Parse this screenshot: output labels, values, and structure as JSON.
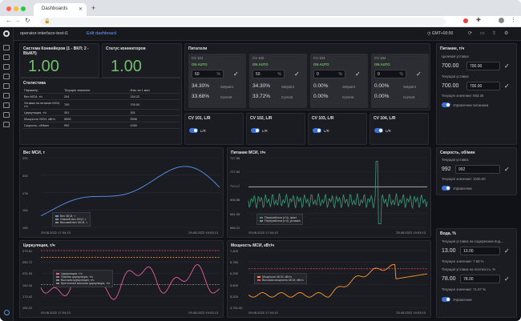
{
  "browser": {
    "tab_title": "Dashboards",
    "url": ""
  },
  "header": {
    "title": "operator-interface-test-i1",
    "edit_link": "Edit dashboard",
    "timezone": "GMT+00:00"
  },
  "system_panel": {
    "title": "Система Конвейеров (1 - ВКЛ; 2 - ВЫКЛ)",
    "value": "1.00"
  },
  "connectors_panel": {
    "title": "Статус коннекторов",
    "value": "1.00"
  },
  "stats_panel": {
    "title": "Статистика",
    "columns": [
      "Параметр",
      "Текущее значение",
      "Изм. за 1 мин"
    ],
    "rows": [
      [
        "Вес МСИ, т/ч",
        "204",
        "204.22"
      ],
      [
        "Уставка на питание МСИ, т/ч",
        "700",
        "700.00"
      ],
      [
        "Циркуляция, т/ч",
        "301",
        "301"
      ],
      [
        "Мощность МСИ, кВт/ч",
        "5506",
        "5506"
      ],
      [
        "Скорость, об/мин",
        "992",
        "1000"
      ]
    ]
  },
  "feeders_panel": {
    "title": "Питатели",
    "items": [
      {
        "name": "CV 101",
        "mode": "ON AUTO",
        "input": "50",
        "unit": "%",
        "setpoint": "34.30%",
        "setpoint_label": "Setpoint",
        "current": "33.68%",
        "current_label": "Current"
      },
      {
        "name": "CV 102",
        "mode": "ON AUTO",
        "input": "50",
        "unit": "%",
        "setpoint": "34.30%",
        "setpoint_label": "Setpoint",
        "current": "33.72%",
        "current_label": "Current"
      },
      {
        "name": "CV 103",
        "mode": "ON AUTO",
        "input": "0",
        "unit": "%",
        "setpoint": "0.00%",
        "setpoint_label": "Setpoint",
        "current": "0.00%",
        "current_label": "Current"
      },
      {
        "name": "CV 104",
        "mode": "ON AUTO",
        "input": "0",
        "unit": "%",
        "setpoint": "0.00%",
        "setpoint_label": "Setpoint",
        "current": "0.00%",
        "current_label": "Current"
      }
    ]
  },
  "cv_toggles": [
    {
      "title": "CV 101, L/R",
      "label": "L/R"
    },
    {
      "title": "CV 102, L/R",
      "label": "L/R"
    },
    {
      "title": "CV 103, L/R",
      "label": "L/R"
    },
    {
      "title": "CV 104, L/R",
      "label": "L/R"
    }
  ],
  "feed_control": {
    "title": "Питание, т/ч",
    "target_label": "Целевая уставка",
    "target_value": "700.00",
    "target_input": "700.00",
    "current_label": "Текущая уставка",
    "current_value": "700.00",
    "current_input": "700.00",
    "now_text": "Текущее значение: 693.26",
    "toggle_label": "Управление питанием"
  },
  "speed_control": {
    "title": "Скорость, об/мин",
    "current_label": "Текущая уставка",
    "current_value": "992",
    "current_input": "992",
    "now_text": "Текущее значение: 1036.00",
    "toggle_label": "Управление"
  },
  "water_control": {
    "title": "Вода, %",
    "content_label": "Текущая уставка на содержание вод...",
    "content_value": "13.00",
    "content_input": "13.00",
    "content_now": "Текущее значение: 7.69 %",
    "density_label": "Текущая уставка на плотность, %",
    "density_value": "78.00",
    "density_input": "78.00",
    "density_now": "Текущее значение: 71.67 %",
    "toggle_label": "Управление"
  },
  "charts": {
    "weight": {
      "title": "Вес МСИ, т",
      "yticks": [
        "220",
        "202",
        "178",
        "164",
        "150"
      ],
      "xticks": [
        "29.08.2022 17:04:13",
        "29.08.2022 19:03:13"
      ],
      "legend": [
        "Вес МСИ, т",
        "Нижний вес МСИ, т",
        "Высокий вес МСИ, т"
      ]
    },
    "feed": {
      "title": "Питание МСИ, т/ч",
      "yticks": [
        "747.86",
        "727.60",
        "712.17",
        "696.86",
        "681.53",
        "666.21"
      ],
      "xticks": [
        "29.08.2022 17:04:13",
        "29.08.2022 19:03:13"
      ],
      "legend": [
        "Переработка (т/ч), факт",
        "Переработка (т/ч), уставка"
      ]
    },
    "circ": {
      "title": "Циркуляция, т/ч",
      "yticks": [
        "279.51",
        "250.72",
        "231.93",
        "192.34",
        "173.42",
        "152.22"
      ],
      "xticks": [
        "29.08.2022 17:04:13",
        "29.08.2022 19:03:13"
      ],
      "legend": [
        "Циркуляция, т/ч",
        "Нижняя циркуляция, т/ч",
        "Высокая циркуляция, т/ч",
        "Критически высокая циркуляция, т/ч"
      ]
    },
    "power": {
      "title": "Мощность МСИ, кВт/ч",
      "yticks": [
        "7,400",
        "6,780",
        "6,290",
        "5,600",
        "5,200",
        "4,761.90"
      ],
      "xticks": [
        "29.08.2022 17:04:13",
        "29.08.2022 19:03:13"
      ],
      "legend": [
        "Мощность МСИ, кВт/ч",
        "Высокая мощность МСИ, кВт/ч"
      ]
    }
  },
  "colors": {
    "green": "#73bf69",
    "blue": "#5794f2",
    "pink": "#e85ca0",
    "orange": "#ff9830",
    "teal": "#3a8f6e"
  }
}
